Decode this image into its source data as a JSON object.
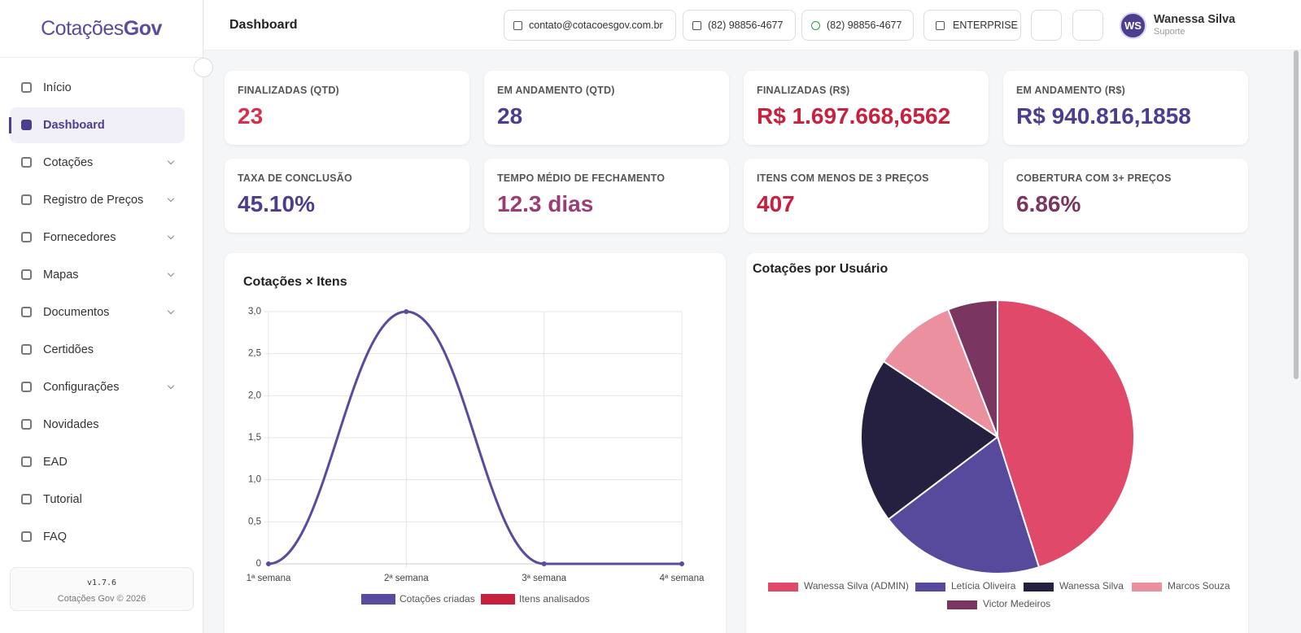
{
  "logo": {
    "text1": "Cotações",
    "text2": "Gov"
  },
  "sidebar": {
    "active_index": 1,
    "items": [
      {
        "label": "Início",
        "submenu": false
      },
      {
        "label": "Dashboard",
        "submenu": false
      },
      {
        "label": "Cotações",
        "submenu": true
      },
      {
        "label": "Registro de Preços",
        "submenu": true
      },
      {
        "label": "Fornecedores",
        "submenu": true
      },
      {
        "label": "Mapas",
        "submenu": true
      },
      {
        "label": "Documentos",
        "submenu": true
      },
      {
        "label": "Certidões",
        "submenu": false
      },
      {
        "label": "Configurações",
        "submenu": true
      },
      {
        "label": "Novidades",
        "submenu": false
      },
      {
        "label": "EAD",
        "submenu": false
      },
      {
        "label": "Tutorial",
        "submenu": false
      },
      {
        "label": "FAQ",
        "submenu": false
      }
    ],
    "version": "v1.7.6",
    "copyright": "Cotações Gov © 2026"
  },
  "header": {
    "title": "Dashboard",
    "email": "contato@cotacoesgov.com.br",
    "phone": "(82) 98856-4677",
    "whatsapp": "(82) 98856-4677",
    "plan": "ENTERPRISE",
    "user_initials": "WS",
    "user_name": "Wanessa Silva",
    "user_role": "Suporte"
  },
  "cards": [
    {
      "label": "FINALIZADAS (QTD)",
      "value": "23",
      "color": "#d6304f"
    },
    {
      "label": "EM ANDAMENTO (QTD)",
      "value": "28",
      "color": "#4a3f8f"
    },
    {
      "label": "FINALIZADAS (R$)",
      "value": "R$ 1.697.668,6562",
      "color": "#c8203f"
    },
    {
      "label": "EM ANDAMENTO (R$)",
      "value": "R$ 940.816,1858",
      "color": "#4a3f8f"
    },
    {
      "label": "TAXA DE CONCLUSÃO",
      "value": "45.10%",
      "color": "#4a3f8f"
    },
    {
      "label": "TEMPO MÉDIO DE FECHAMENTO",
      "value": "12.3 dias",
      "color": "#9c3d72"
    },
    {
      "label": "ITENS COM MENOS DE 3 PREÇOS",
      "value": "407",
      "color": "#c8203f"
    },
    {
      "label": "COBERTURA COM 3+ PREÇOS",
      "value": "6.86%",
      "color": "#7a3560"
    }
  ],
  "chart_data": [
    {
      "type": "line",
      "title": "Cotações × Itens",
      "categories": [
        "1ª semana",
        "2ª semana",
        "3ª semana",
        "4ª semana"
      ],
      "series": [
        {
          "name": "Cotações criadas",
          "color": "#5b4b9e",
          "values": [
            0,
            3,
            0,
            0
          ]
        },
        {
          "name": "Itens analisados",
          "color": "#c8203f",
          "values": [
            null,
            null,
            null,
            null
          ]
        }
      ],
      "ylim": [
        0,
        3
      ],
      "yticks": [
        0,
        {
          "value": 0.5,
          "label": "0,5"
        },
        {
          "value": 1,
          "label": "1,0"
        },
        {
          "value": 1.5,
          "label": "1,5"
        },
        {
          "value": 2,
          "label": "2,0"
        },
        {
          "value": 2.5,
          "label": "2,5"
        },
        {
          "value": 3,
          "label": "3,0"
        }
      ],
      "grid": true
    },
    {
      "type": "pie",
      "title": "Cotações por Usuário",
      "categories": [
        "Wanessa Silva (ADMIN)",
        "Letícia Oliveira",
        "Wanessa Silva",
        "Marcos Souza",
        "Victor Medeiros"
      ],
      "values": [
        23,
        10,
        10,
        5,
        3
      ],
      "colors": [
        "#e0496a",
        "#574a9c",
        "#262040",
        "#ea909f",
        "#7a3560"
      ]
    }
  ]
}
